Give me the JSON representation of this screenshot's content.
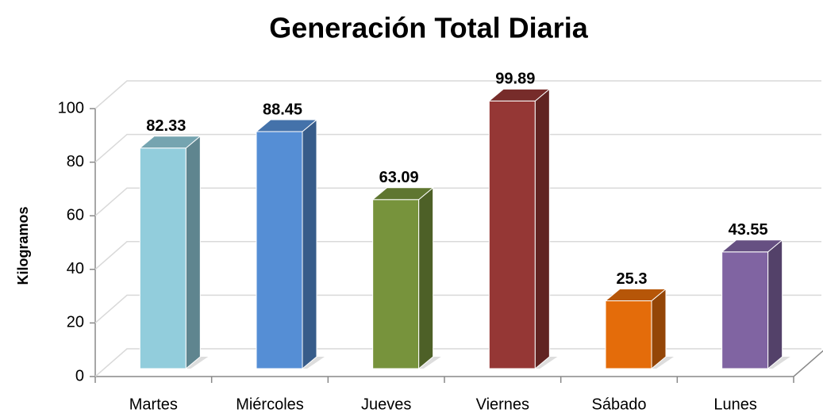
{
  "chart_data": {
    "type": "bar3d",
    "title": "Generación Total Diaria",
    "y_label": "Kilogramos",
    "categories": [
      "Martes",
      "Miércoles",
      "Jueves",
      "Viernes",
      "Sábado",
      "Lunes"
    ],
    "values": [
      82.33,
      88.45,
      63.09,
      99.89,
      25.3,
      43.55
    ],
    "colors": [
      "#92cddc",
      "#558ed5",
      "#77933c",
      "#953735",
      "#e46c0a",
      "#8064a2"
    ],
    "ylim": [
      0,
      100
    ],
    "yticks": [
      0,
      20,
      40,
      60,
      80,
      100
    ],
    "grid": true
  }
}
